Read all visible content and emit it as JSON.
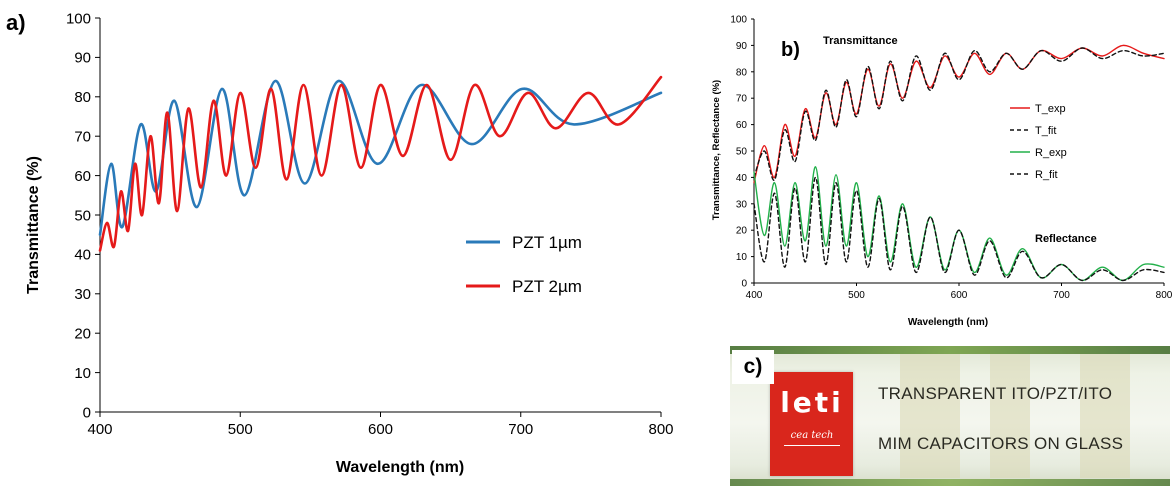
{
  "chart_data": [
    {
      "panel": "a)",
      "type": "line",
      "xlabel": "Wavelength (nm)",
      "ylabel": "Transmittance (%)",
      "xlim": [
        400,
        800
      ],
      "ylim": [
        0,
        100
      ],
      "xticks": [
        "400",
        "500",
        "600",
        "700",
        "800"
      ],
      "yticks": [
        "0",
        "10",
        "20",
        "30",
        "40",
        "50",
        "60",
        "70",
        "80",
        "90",
        "100"
      ],
      "grid": false,
      "legend": "center-right",
      "series": [
        {
          "name": "PZT 1µm",
          "color": "#2a7ab9",
          "x": [
            400,
            408,
            416,
            429,
            440,
            453,
            469,
            487,
            503,
            525,
            546,
            570,
            598,
            629,
            665,
            701,
            738,
            800
          ],
          "y": [
            45,
            63,
            47,
            73,
            56,
            79,
            52,
            82,
            55,
            84,
            58,
            84,
            63,
            83,
            68,
            82,
            73,
            81
          ]
        },
        {
          "name": "PZT 2µm",
          "color": "#e51a1a",
          "x": [
            400,
            405,
            410,
            415,
            420,
            425,
            430,
            436,
            442,
            448,
            455,
            463,
            472,
            481,
            490,
            500,
            511,
            522,
            533,
            545,
            558,
            572,
            586,
            600,
            616,
            633,
            650,
            667,
            685,
            705,
            725,
            748,
            770,
            800
          ],
          "y": [
            41,
            48,
            42,
            56,
            46,
            63,
            50,
            70,
            53,
            76,
            51,
            77,
            57,
            79,
            60,
            81,
            62,
            82,
            59,
            83,
            60,
            83,
            62,
            83,
            65,
            83,
            64,
            83,
            70,
            81,
            72,
            81,
            73,
            85
          ]
        }
      ]
    },
    {
      "panel": "b)",
      "type": "line",
      "xlabel": "Wavelength (nm)",
      "ylabel": "Transmittance, Reflectance (%)",
      "xlim": [
        400,
        800
      ],
      "ylim": [
        0,
        100
      ],
      "xticks": [
        "400",
        "500",
        "600",
        "700",
        "800"
      ],
      "yticks": [
        "0",
        "10",
        "20",
        "30",
        "40",
        "50",
        "60",
        "70",
        "80",
        "90",
        "100"
      ],
      "grid": false,
      "legend": "center-right",
      "annotations": [
        "Transmittance",
        "Reflectance"
      ],
      "series": [
        {
          "name": "T_exp",
          "color": "#e51a1a",
          "dash": false,
          "x": [
            400,
            410,
            420,
            430,
            440,
            450,
            460,
            470,
            480,
            490,
            500,
            511,
            522,
            533,
            545,
            558,
            572,
            586,
            600,
            615,
            630,
            646,
            662,
            680,
            700,
            720,
            740,
            760,
            780,
            800
          ],
          "y": [
            38,
            52,
            40,
            60,
            48,
            66,
            55,
            72,
            60,
            76,
            64,
            81,
            67,
            83,
            70,
            84,
            74,
            86,
            78,
            87,
            79,
            87,
            81,
            88,
            85,
            89,
            86,
            90,
            87,
            85
          ]
        },
        {
          "name": "T_fit",
          "color": "#111111",
          "dash": true,
          "x": [
            400,
            410,
            420,
            430,
            440,
            450,
            460,
            470,
            480,
            490,
            500,
            511,
            522,
            533,
            545,
            558,
            572,
            586,
            600,
            615,
            630,
            646,
            662,
            680,
            700,
            720,
            740,
            760,
            780,
            800
          ],
          "y": [
            40,
            50,
            39,
            58,
            46,
            65,
            54,
            73,
            59,
            77,
            63,
            82,
            66,
            84,
            69,
            86,
            73,
            87,
            77,
            88,
            80,
            87,
            81,
            88,
            84,
            89,
            85,
            88,
            86,
            87
          ]
        },
        {
          "name": "R_exp",
          "color": "#22b04a",
          "dash": false,
          "x": [
            400,
            410,
            420,
            430,
            440,
            450,
            460,
            470,
            480,
            490,
            500,
            511,
            522,
            533,
            545,
            558,
            572,
            586,
            600,
            615,
            630,
            646,
            662,
            680,
            700,
            720,
            740,
            760,
            780,
            800
          ],
          "y": [
            42,
            18,
            38,
            14,
            38,
            16,
            44,
            14,
            41,
            14,
            38,
            10,
            33,
            8,
            30,
            6,
            25,
            5,
            20,
            4,
            17,
            3,
            13,
            2,
            7,
            1,
            6,
            1,
            7,
            6
          ]
        },
        {
          "name": "R_fit",
          "color": "#111111",
          "dash": true,
          "x": [
            400,
            410,
            420,
            430,
            440,
            450,
            460,
            470,
            480,
            490,
            500,
            511,
            522,
            533,
            545,
            558,
            572,
            586,
            600,
            615,
            630,
            646,
            662,
            680,
            700,
            720,
            740,
            760,
            780,
            800
          ],
          "y": [
            30,
            8,
            34,
            6,
            36,
            8,
            40,
            7,
            38,
            8,
            35,
            6,
            32,
            5,
            29,
            4,
            25,
            4,
            20,
            3,
            16,
            2,
            12,
            2,
            7,
            1,
            5,
            1,
            5,
            4
          ]
        }
      ]
    }
  ],
  "photo": {
    "panel": "c)",
    "logo_word": "leti",
    "logo_sub": "cea tech",
    "line1": "TRANSPARENT ITO/PZT/ITO",
    "line2": "MIM CAPACITORS ON GLASS",
    "logo_color": "#d9261c"
  }
}
